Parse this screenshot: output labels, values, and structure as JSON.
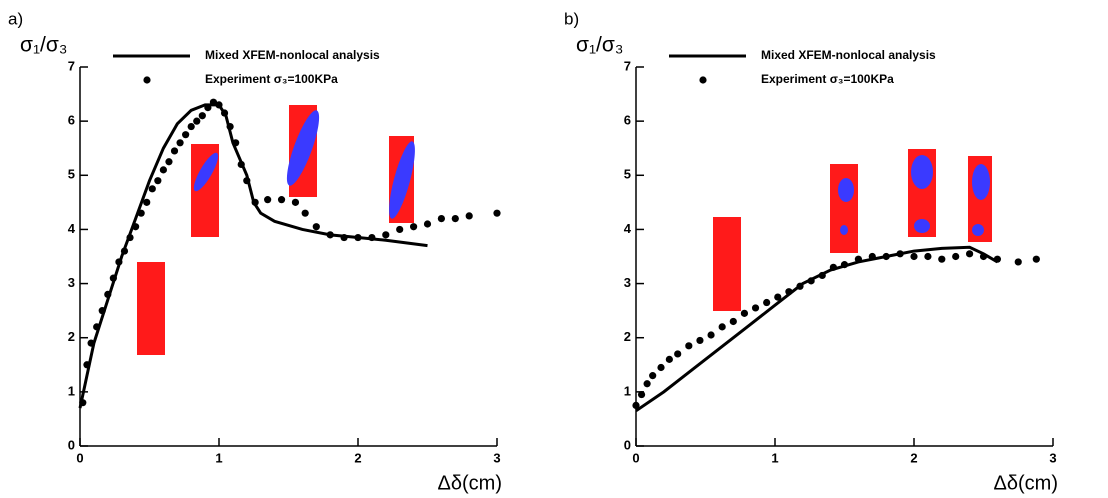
{
  "chart_data": [
    {
      "type": "line",
      "panel_label": "a)",
      "ylabel": "σ₁/σ₃",
      "xlabel": "Δδ(cm)",
      "xlim": [
        0,
        3
      ],
      "ylim": [
        0,
        7
      ],
      "xticks": [
        0,
        1,
        2,
        3
      ],
      "yticks": [
        0,
        1,
        2,
        3,
        4,
        5,
        6,
        7
      ],
      "series": [
        {
          "name": "Mixed XFEM-nonlocal analysis",
          "color": "#000000",
          "style": "line",
          "x": [
            0,
            0.05,
            0.1,
            0.2,
            0.3,
            0.4,
            0.5,
            0.6,
            0.7,
            0.8,
            0.9,
            1.0,
            1.05,
            1.1,
            1.2,
            1.25,
            1.3,
            1.4,
            1.6,
            1.8,
            2.0,
            2.2,
            2.5
          ],
          "values": [
            0.7,
            1.3,
            1.9,
            2.7,
            3.5,
            4.2,
            4.9,
            5.5,
            5.95,
            6.2,
            6.3,
            6.3,
            6.1,
            5.6,
            5.0,
            4.5,
            4.3,
            4.15,
            4.0,
            3.9,
            3.85,
            3.8,
            3.7
          ]
        },
        {
          "name": "Experiment σ₃=100KPa",
          "color": "#000000",
          "style": "markers",
          "x": [
            0.02,
            0.05,
            0.08,
            0.12,
            0.16,
            0.2,
            0.24,
            0.28,
            0.32,
            0.36,
            0.4,
            0.44,
            0.48,
            0.52,
            0.56,
            0.6,
            0.64,
            0.68,
            0.72,
            0.76,
            0.8,
            0.84,
            0.88,
            0.92,
            0.96,
            1.0,
            1.04,
            1.08,
            1.12,
            1.16,
            1.2,
            1.26,
            1.35,
            1.45,
            1.55,
            1.62,
            1.7,
            1.8,
            1.9,
            2.0,
            2.1,
            2.2,
            2.3,
            2.4,
            2.5,
            2.6,
            2.7,
            2.8,
            3.0
          ],
          "values": [
            0.8,
            1.5,
            1.9,
            2.2,
            2.5,
            2.8,
            3.1,
            3.4,
            3.6,
            3.85,
            4.05,
            4.3,
            4.5,
            4.75,
            4.9,
            5.1,
            5.25,
            5.45,
            5.6,
            5.75,
            5.9,
            6.0,
            6.1,
            6.25,
            6.35,
            6.3,
            6.15,
            5.9,
            5.6,
            5.2,
            4.9,
            4.5,
            4.55,
            4.55,
            4.5,
            4.3,
            4.05,
            3.9,
            3.85,
            3.85,
            3.85,
            3.9,
            4.0,
            4.05,
            4.1,
            4.2,
            4.2,
            4.25,
            4.3
          ]
        }
      ]
    },
    {
      "type": "line",
      "panel_label": "b)",
      "ylabel": "σ₁/σ₃",
      "xlabel": "Δδ(cm)",
      "xlim": [
        0,
        3
      ],
      "ylim": [
        0,
        7
      ],
      "xticks": [
        0,
        1,
        2,
        3
      ],
      "yticks": [
        0,
        1,
        2,
        3,
        4,
        5,
        6,
        7
      ],
      "series": [
        {
          "name": "Mixed XFEM-nonlocal analysis",
          "color": "#000000",
          "style": "line",
          "x": [
            0,
            0.2,
            0.4,
            0.6,
            0.8,
            1.0,
            1.2,
            1.4,
            1.6,
            1.8,
            2.0,
            2.2,
            2.4,
            2.5,
            2.6
          ],
          "values": [
            0.65,
            1.0,
            1.4,
            1.8,
            2.2,
            2.6,
            3.0,
            3.25,
            3.4,
            3.5,
            3.6,
            3.65,
            3.67,
            3.55,
            3.4
          ]
        },
        {
          "name": "Experiment σ₃=100KPa",
          "color": "#000000",
          "style": "markers",
          "x": [
            0,
            0.04,
            0.08,
            0.12,
            0.18,
            0.24,
            0.3,
            0.38,
            0.46,
            0.54,
            0.62,
            0.7,
            0.78,
            0.86,
            0.94,
            1.02,
            1.1,
            1.18,
            1.26,
            1.34,
            1.42,
            1.5,
            1.6,
            1.7,
            1.8,
            1.9,
            2.0,
            2.1,
            2.2,
            2.3,
            2.4,
            2.5,
            2.6,
            2.75,
            2.88
          ],
          "values": [
            0.75,
            0.95,
            1.15,
            1.3,
            1.45,
            1.6,
            1.7,
            1.85,
            1.95,
            2.05,
            2.2,
            2.3,
            2.45,
            2.55,
            2.65,
            2.75,
            2.85,
            2.95,
            3.05,
            3.15,
            3.3,
            3.35,
            3.45,
            3.5,
            3.5,
            3.55,
            3.5,
            3.5,
            3.45,
            3.5,
            3.55,
            3.5,
            3.45,
            3.4,
            3.45
          ]
        }
      ]
    }
  ]
}
